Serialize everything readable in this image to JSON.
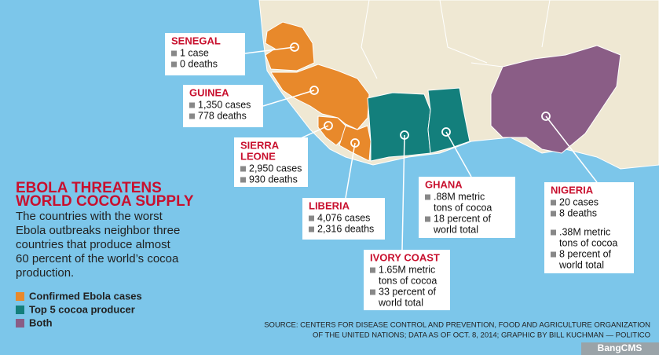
{
  "title_lines": [
    "EBOLA THREATENS",
    "WORLD COCOA SUPPLY"
  ],
  "subtitle_lines": [
    "The countries with the worst",
    "Ebola outbreaks neighbor three",
    "countries that produce almost",
    "60 percent of the world’s cocoa",
    "production."
  ],
  "legend": [
    {
      "label": "Confirmed Ebola cases",
      "color": "#e8892b"
    },
    {
      "label": "Top 5 cocoa producer",
      "color": "#137f7c"
    },
    {
      "label": "Both",
      "color": "#8a5d86"
    }
  ],
  "countries": [
    {
      "name_lines": [
        "SENEGAL"
      ],
      "items": [
        [
          "1 case"
        ],
        [
          "0 deaths"
        ]
      ]
    },
    {
      "name_lines": [
        "GUINEA"
      ],
      "items": [
        [
          "1,350 cases"
        ],
        [
          "778 deaths"
        ]
      ]
    },
    {
      "name_lines": [
        "SIERRA",
        "LEONE"
      ],
      "items": [
        [
          "2,950 cases"
        ],
        [
          "930 deaths"
        ]
      ]
    },
    {
      "name_lines": [
        "LIBERIA"
      ],
      "items": [
        [
          "4,076 cases"
        ],
        [
          "2,316 deaths"
        ]
      ]
    },
    {
      "name_lines": [
        "IVORY COAST"
      ],
      "items": [
        [
          "1.65M metric",
          "tons of cocoa"
        ],
        [
          "33 percent of",
          "world total"
        ]
      ]
    },
    {
      "name_lines": [
        "GHANA"
      ],
      "items": [
        [
          ".88M metric",
          "tons of cocoa"
        ],
        [
          "18 percent of",
          "world total"
        ]
      ]
    },
    {
      "name_lines": [
        "NIGERIA"
      ],
      "items": [
        [
          "20 cases"
        ],
        [
          "8 deaths"
        ],
        [
          ".38M metric",
          "tons of cocoa"
        ],
        [
          "8 percent of",
          "world total"
        ]
      ]
    }
  ],
  "source_lines": [
    "SOURCE: CENTERS FOR DISEASE CONTROL AND PREVENTION, FOOD AND AGRICULTURE ORGANIZATION",
    "OF THE UNITED NATIONS; DATA AS OF OCT. 8, 2014; GRAPHIC BY BILL KUCHMAN — POLITICO"
  ],
  "watermark": "BangCMS"
}
